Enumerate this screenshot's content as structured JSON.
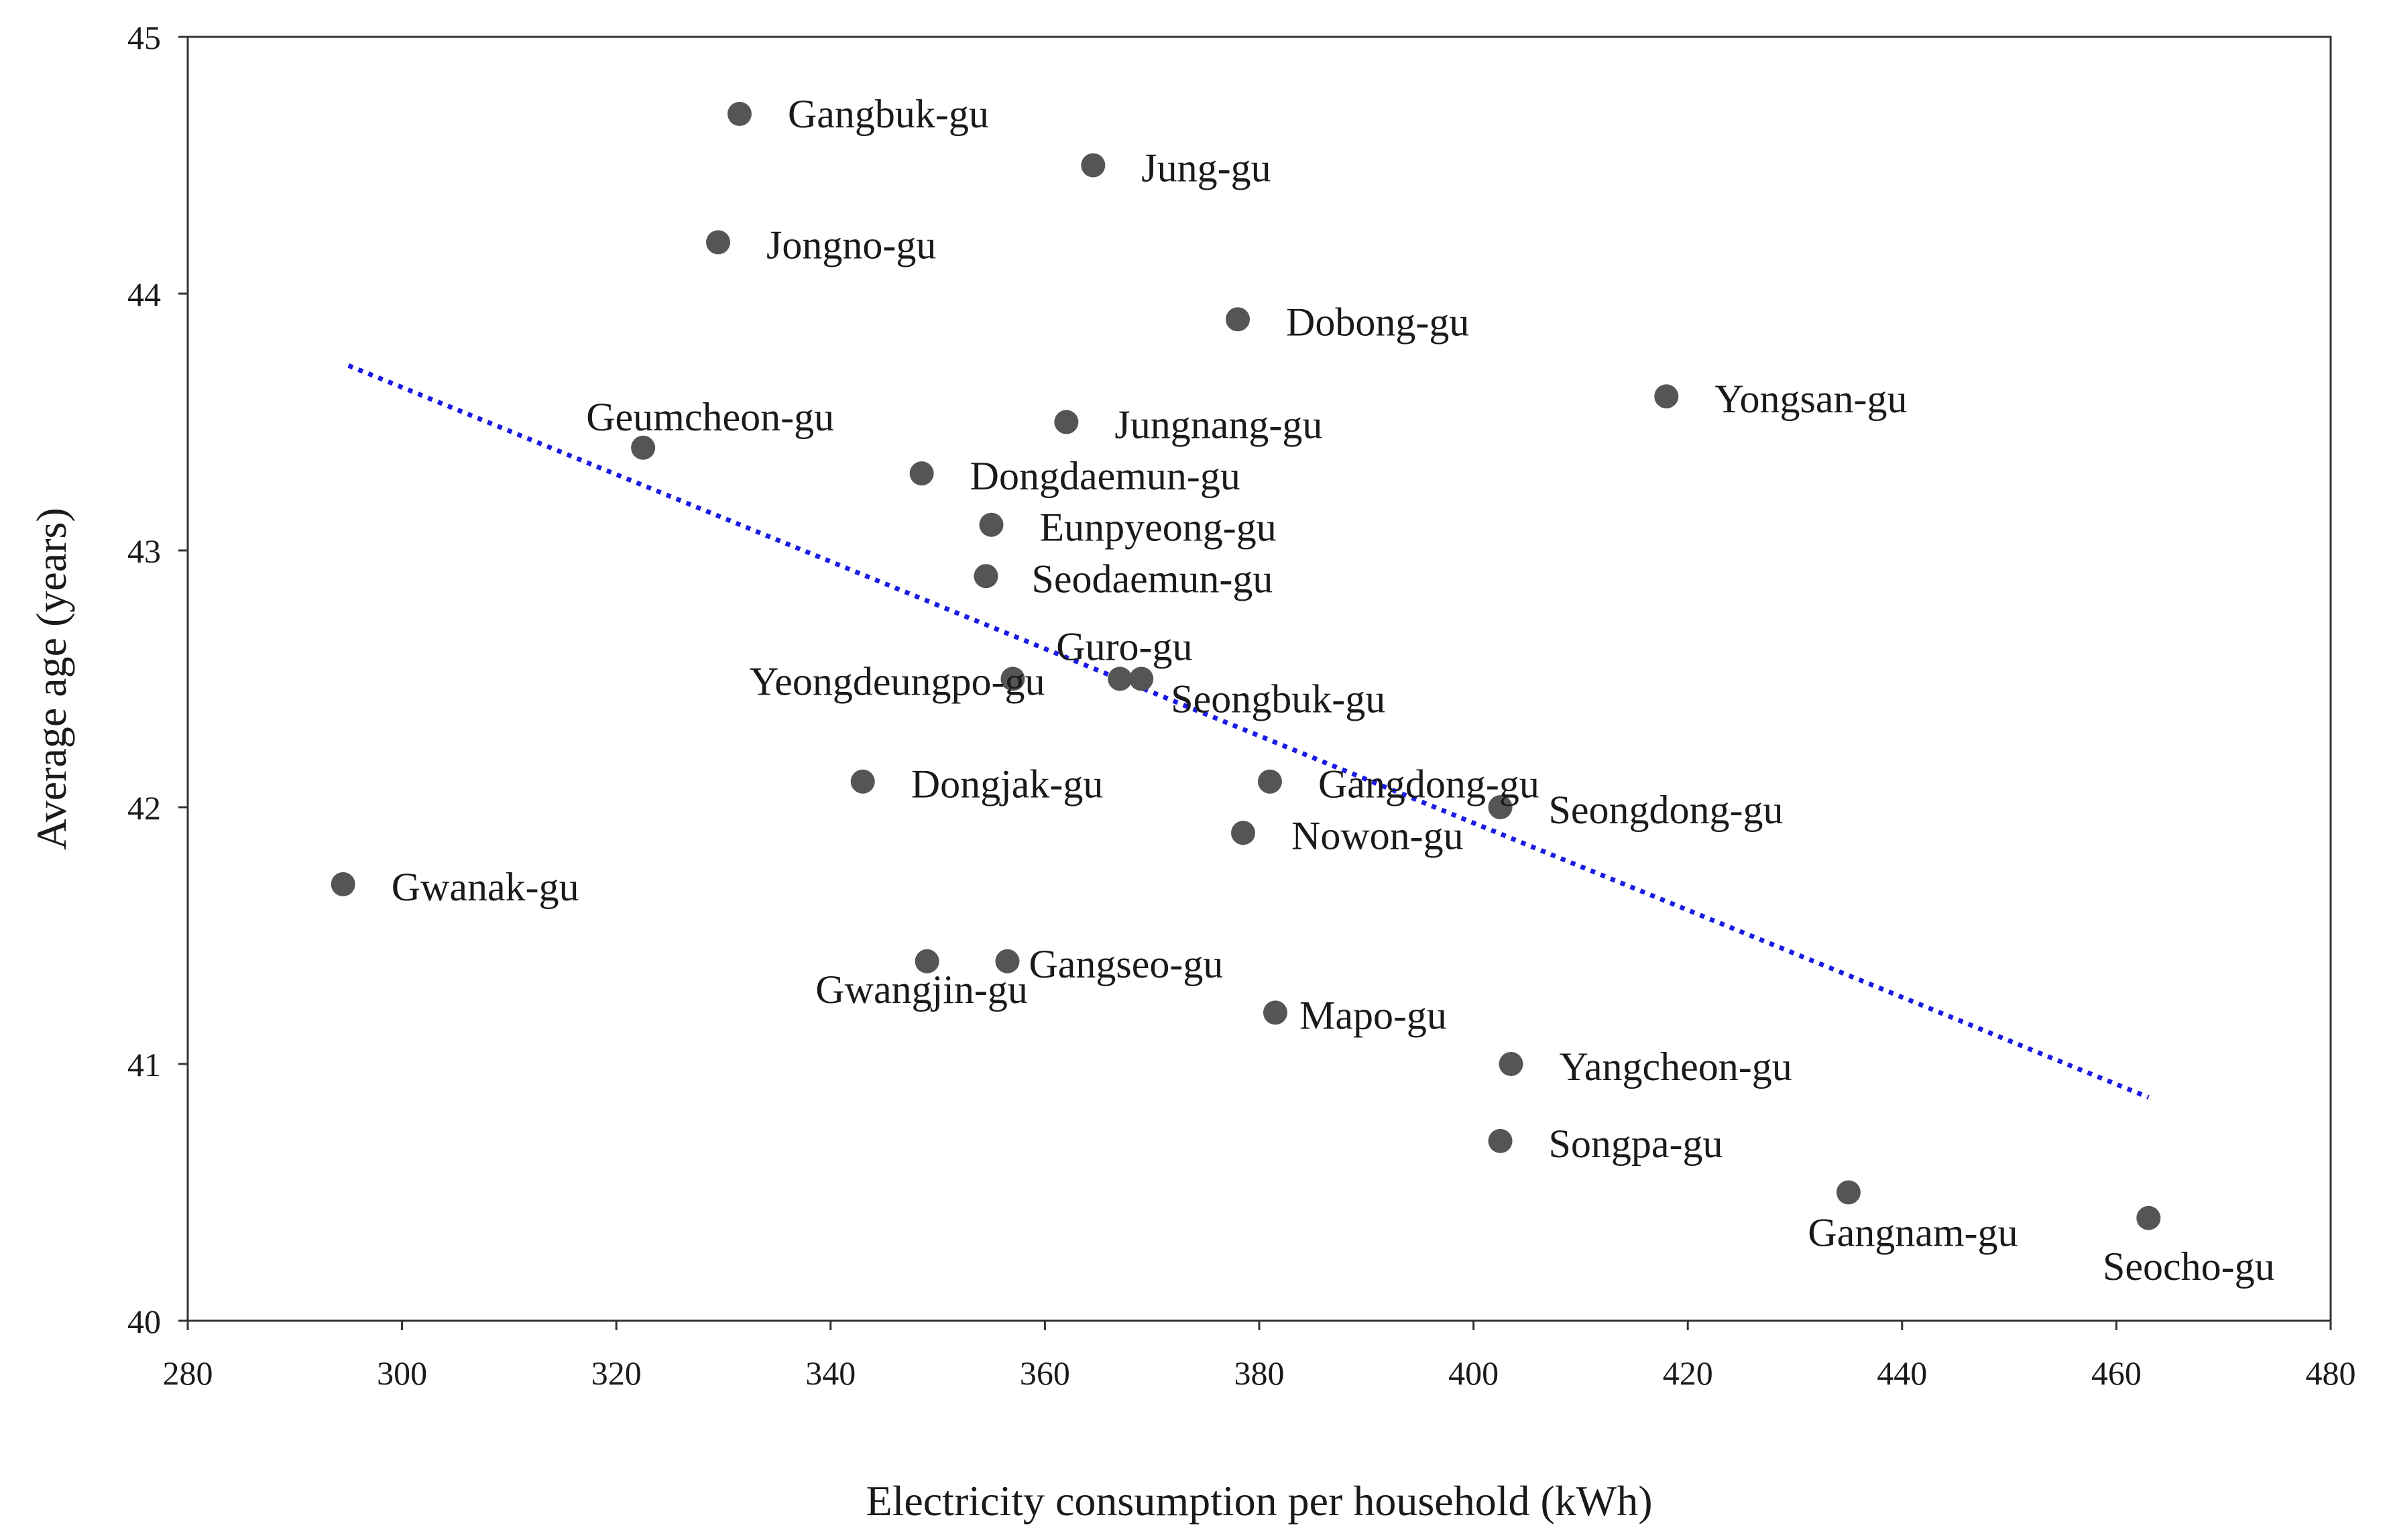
{
  "chart_data": {
    "type": "scatter",
    "title": "",
    "xlabel": "Electricity consumption per household (kWh)",
    "ylabel": "Average age (years)",
    "xlim": [
      280,
      480
    ],
    "ylim": [
      40,
      45
    ],
    "xticks": [
      280,
      300,
      320,
      340,
      360,
      380,
      400,
      420,
      440,
      460,
      480
    ],
    "yticks": [
      40,
      41,
      42,
      43,
      44,
      45
    ],
    "grid": false,
    "legend": "none",
    "points": [
      {
        "label": "Gangbuk-gu",
        "x": 331.5,
        "y": 44.7
      },
      {
        "label": "Jung-gu",
        "x": 364.5,
        "y": 44.5
      },
      {
        "label": "Jongno-gu",
        "x": 329.5,
        "y": 44.2
      },
      {
        "label": "Dobong-gu",
        "x": 378.0,
        "y": 43.9
      },
      {
        "label": "Yongsan-gu",
        "x": 418.0,
        "y": 43.6
      },
      {
        "label": "Geumcheon-gu",
        "x": 322.5,
        "y": 43.4
      },
      {
        "label": "Jungnang-gu",
        "x": 362.0,
        "y": 43.5
      },
      {
        "label": "Dongdaemun-gu",
        "x": 348.5,
        "y": 43.3
      },
      {
        "label": "Eunpyeong-gu",
        "x": 355.0,
        "y": 43.1
      },
      {
        "label": "Seodaemun-gu",
        "x": 354.5,
        "y": 42.9
      },
      {
        "label": "Guro-gu",
        "x": 367.0,
        "y": 42.5
      },
      {
        "label": "Yeongdeungpo-gu",
        "x": 357.0,
        "y": 42.5
      },
      {
        "label": "Seongbuk-gu",
        "x": 369.0,
        "y": 42.5
      },
      {
        "label": "Dongjak-gu",
        "x": 343.0,
        "y": 42.1
      },
      {
        "label": "Gangdong-gu",
        "x": 381.0,
        "y": 42.1
      },
      {
        "label": "Seongdong-gu",
        "x": 402.5,
        "y": 42.0
      },
      {
        "label": "Nowon-gu",
        "x": 378.5,
        "y": 41.9
      },
      {
        "label": "Gwanak-gu",
        "x": 294.5,
        "y": 41.7
      },
      {
        "label": "Gwangjin-gu",
        "x": 349.0,
        "y": 41.4
      },
      {
        "label": "Gangseo-gu",
        "x": 356.5,
        "y": 41.4
      },
      {
        "label": "Mapo-gu",
        "x": 381.5,
        "y": 41.2
      },
      {
        "label": "Yangcheon-gu",
        "x": 403.5,
        "y": 41.0
      },
      {
        "label": "Songpa-gu",
        "x": 402.5,
        "y": 40.7
      },
      {
        "label": "Gangnam-gu",
        "x": 435.0,
        "y": 40.5
      },
      {
        "label": "Seocho-gu",
        "x": 463.0,
        "y": 40.4
      }
    ],
    "trendline": {
      "style": "dotted",
      "x": [
        295,
        463
      ],
      "y": [
        43.72,
        40.87
      ]
    },
    "colors": {
      "point": "#555555",
      "trendline": "#1a1ae6",
      "axis": "#333333",
      "text": "#1a1a1a"
    }
  }
}
